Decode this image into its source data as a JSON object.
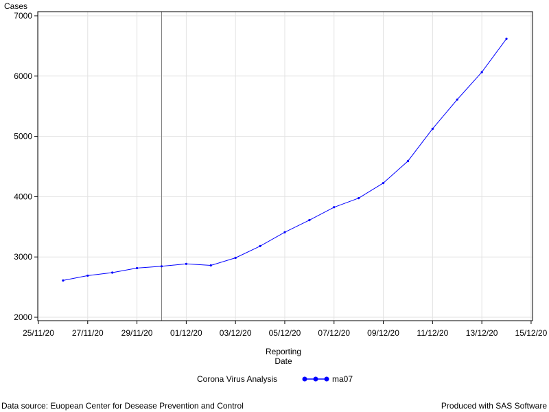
{
  "chart_data": {
    "type": "line",
    "title": "",
    "ylabel": "Cases",
    "xlabel": [
      "Reporting",
      "Date"
    ],
    "ylim": [
      2000,
      7000
    ],
    "yticks": [
      "2000",
      "3000",
      "4000",
      "5000",
      "6000",
      "7000"
    ],
    "xlim": [
      "2020-11-25",
      "2020-12-15"
    ],
    "xticks": [
      "25/11/20",
      "27/11/20",
      "29/11/20",
      "01/12/20",
      "03/12/20",
      "05/12/20",
      "07/12/20",
      "09/12/20",
      "11/12/20",
      "13/12/20",
      "15/12/20"
    ],
    "grid": true,
    "reference_line_x": "2020-11-30",
    "series": [
      {
        "name": "ma07",
        "color": "#0000ff",
        "marker": "dot",
        "points": [
          {
            "x": "2020-11-26",
            "y": 2610
          },
          {
            "x": "2020-11-27",
            "y": 2690
          },
          {
            "x": "2020-11-28",
            "y": 2740
          },
          {
            "x": "2020-11-29",
            "y": 2815
          },
          {
            "x": "2020-11-30",
            "y": 2845
          },
          {
            "x": "2020-12-01",
            "y": 2885
          },
          {
            "x": "2020-12-02",
            "y": 2860
          },
          {
            "x": "2020-12-03",
            "y": 2985
          },
          {
            "x": "2020-12-04",
            "y": 3180
          },
          {
            "x": "2020-12-05",
            "y": 3410
          },
          {
            "x": "2020-12-06",
            "y": 3610
          },
          {
            "x": "2020-12-07",
            "y": 3825
          },
          {
            "x": "2020-12-08",
            "y": 3975
          },
          {
            "x": "2020-12-09",
            "y": 4225
          },
          {
            "x": "2020-12-10",
            "y": 4590
          },
          {
            "x": "2020-12-11",
            "y": 5125
          },
          {
            "x": "2020-12-12",
            "y": 5610
          },
          {
            "x": "2020-12-13",
            "y": 6065
          },
          {
            "x": "2020-12-14",
            "y": 6620
          }
        ]
      }
    ],
    "legend": {
      "label": "Corona Virus Analysis",
      "placement": "bottom"
    }
  },
  "footer": {
    "left": "Data source: Euopean Center for Desease Prevention and Control",
    "right": "Produced with SAS Software"
  }
}
